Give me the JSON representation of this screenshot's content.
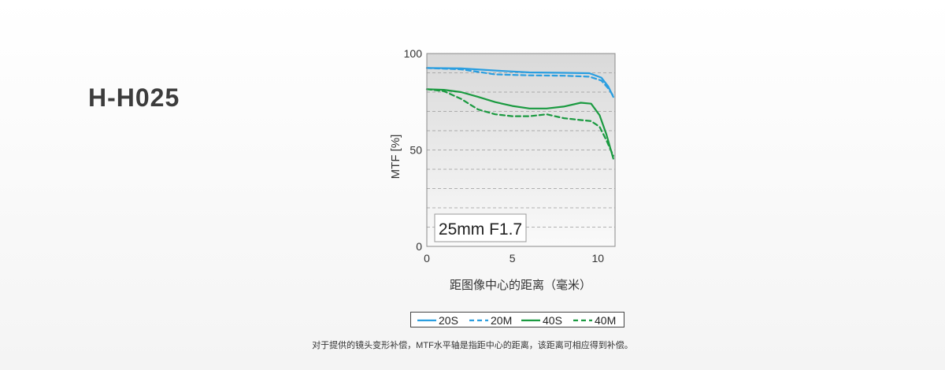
{
  "product": {
    "model": "H-H025"
  },
  "footnote": "对于提供的镜头变形补偿，MTF水平轴是指距中心的距离，该距离可相应得到补偿。",
  "colors": {
    "blue": "#2a9ee0",
    "green": "#1a9a40",
    "frame": "#8a8a8a",
    "grid": "#999999"
  },
  "chart_data": {
    "type": "line",
    "annotation": "25mm F1.7",
    "xlabel": "距图像中心的距离（毫米）",
    "ylabel": "MTF [%]",
    "xlim": [
      0,
      11
    ],
    "ylim": [
      0,
      100
    ],
    "xticks": [
      0,
      5,
      10
    ],
    "yticks": [
      0,
      50,
      100
    ],
    "grid": {
      "y_dashed_every": 10
    },
    "legend_position": "bottom",
    "series": [
      {
        "name": "20S",
        "color": "#2a9ee0",
        "dash": false,
        "x": [
          0,
          2,
          4,
          6,
          8,
          9.5,
          10.2,
          10.6,
          10.9
        ],
        "y": [
          92.5,
          92.3,
          91.2,
          90.2,
          90.0,
          89.8,
          87.5,
          83.0,
          77.5
        ]
      },
      {
        "name": "20M",
        "color": "#2a9ee0",
        "dash": true,
        "x": [
          0,
          2,
          4,
          6,
          8,
          9.5,
          10.2,
          10.6,
          10.9
        ],
        "y": [
          92.5,
          91.8,
          89.2,
          88.7,
          88.5,
          88.0,
          86.0,
          82.0,
          78.0
        ]
      },
      {
        "name": "40S",
        "color": "#1a9a40",
        "dash": false,
        "x": [
          0,
          1,
          2,
          3,
          4,
          5,
          6,
          7,
          8,
          9,
          9.6,
          10.1,
          10.5,
          10.9
        ],
        "y": [
          81.5,
          81.2,
          80.0,
          77.5,
          74.8,
          72.8,
          71.5,
          71.5,
          72.5,
          74.5,
          74.0,
          68.0,
          58.0,
          45.5
        ]
      },
      {
        "name": "40M",
        "color": "#1a9a40",
        "dash": true,
        "x": [
          0,
          1,
          2,
          3,
          4,
          5,
          6,
          7,
          8,
          9,
          9.6,
          10.1,
          10.5,
          10.9
        ],
        "y": [
          81.5,
          80.5,
          76.5,
          71.0,
          68.5,
          67.5,
          67.5,
          68.5,
          66.5,
          65.5,
          65.0,
          62.0,
          55.0,
          47.0
        ]
      }
    ]
  }
}
